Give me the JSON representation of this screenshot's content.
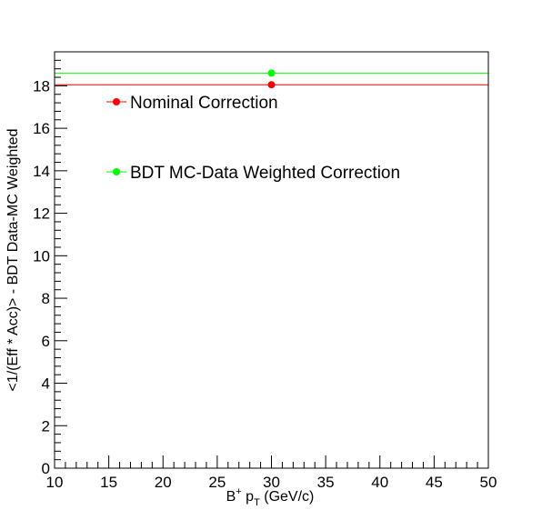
{
  "chart_data": {
    "type": "scatter",
    "xlabel": "B⁺ p_T (GeV/c)",
    "xlabel_parts": {
      "base": "B",
      "sup": "+",
      "mid": " p",
      "sub": "T",
      "tail": " (GeV/c)"
    },
    "ylabel": "<1/(Eff * Acc)> - BDT Data-MC Weighted",
    "xlim": [
      10,
      50
    ],
    "ylim": [
      0,
      19.6
    ],
    "x_ticks": [
      10,
      15,
      20,
      25,
      30,
      35,
      40,
      45,
      50
    ],
    "y_ticks": [
      0,
      2,
      4,
      6,
      8,
      10,
      12,
      14,
      16,
      18
    ],
    "grid": false,
    "legend_placement": "top-left",
    "series": [
      {
        "name": "Nominal Correction",
        "color": "#ff0000",
        "x": [
          30
        ],
        "y": [
          18.05
        ],
        "x_err_low": [
          20
        ],
        "x_err_high": [
          20
        ]
      },
      {
        "name": "BDT MC-Data Weighted Correction",
        "color": "#00ff00",
        "x": [
          30
        ],
        "y": [
          18.6
        ],
        "x_err_low": [
          20
        ],
        "x_err_high": [
          20
        ]
      }
    ]
  }
}
